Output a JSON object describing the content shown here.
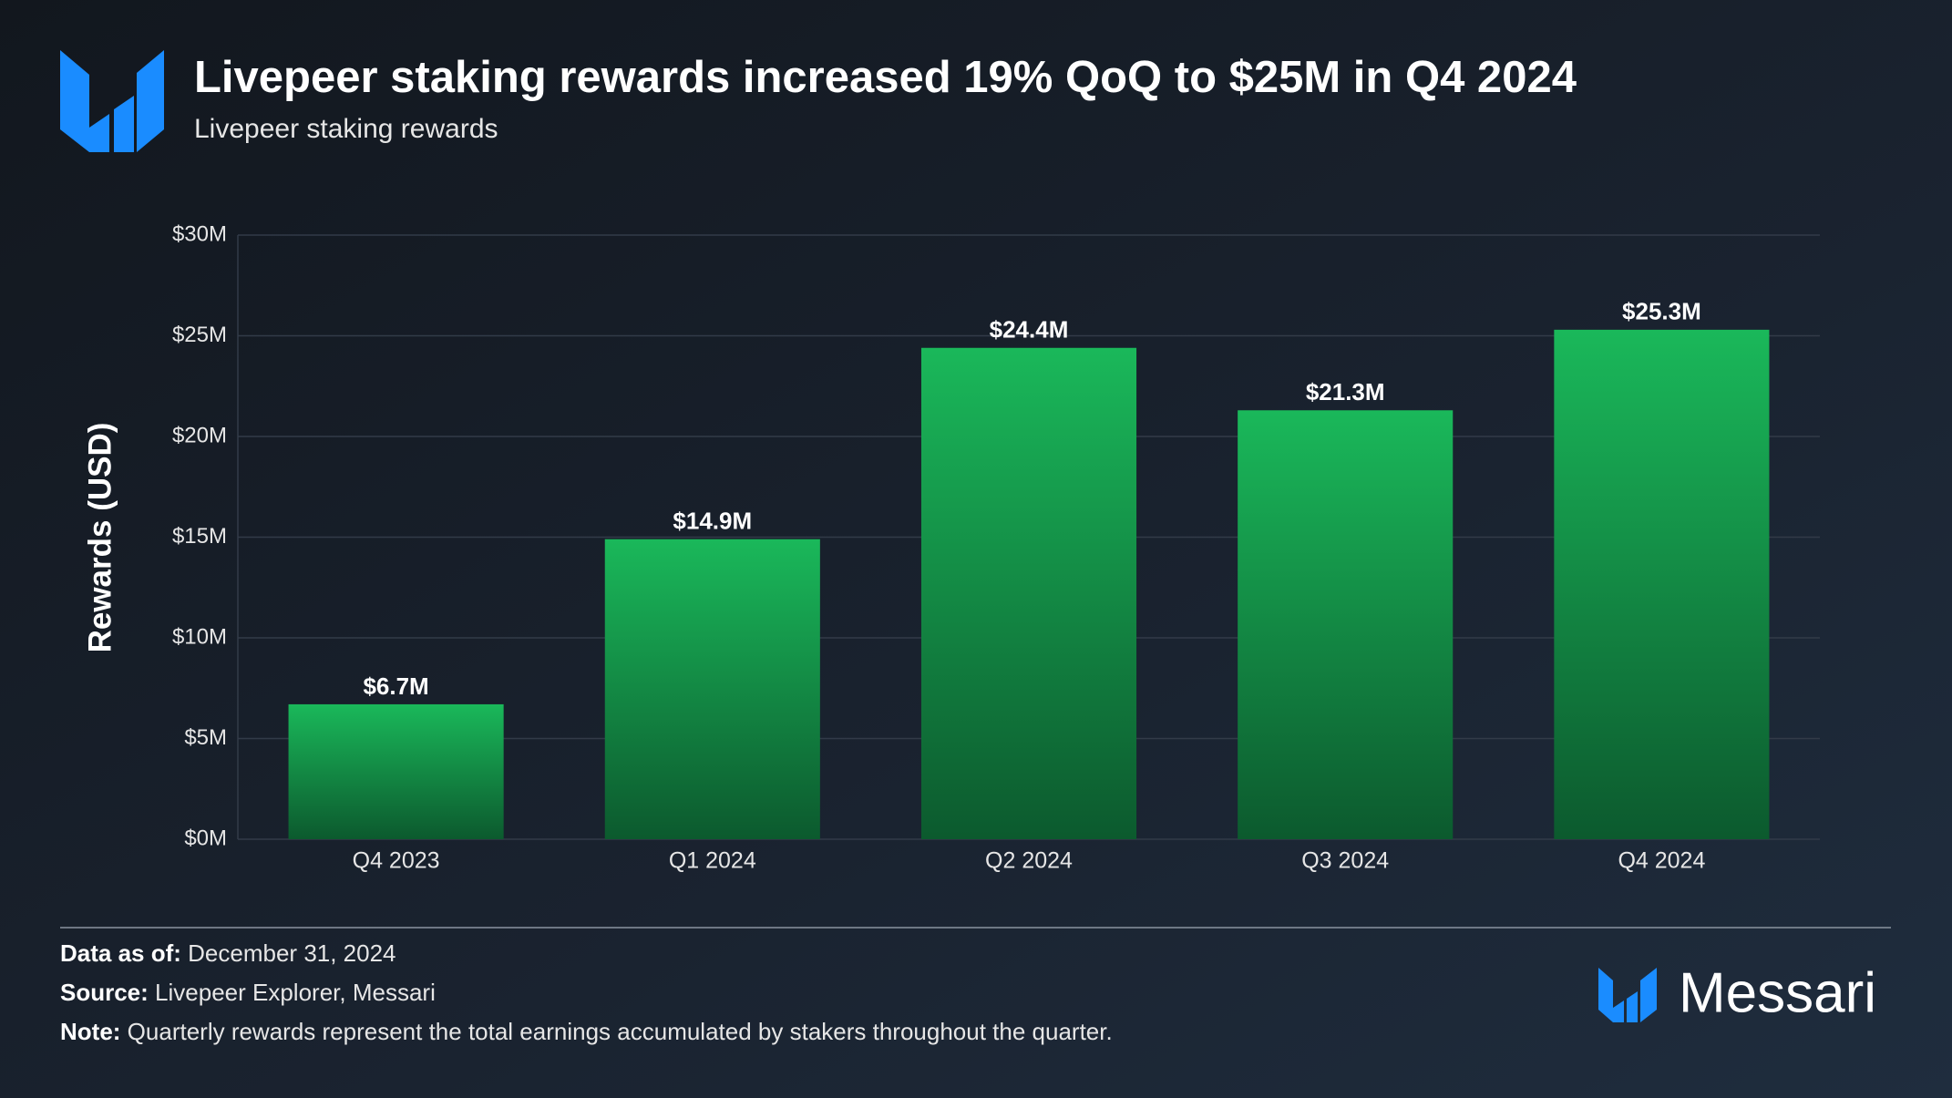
{
  "chart_data": {
    "type": "bar",
    "title": "Livepeer staking rewards increased 19% QoQ to $25M in Q4 2024",
    "subtitle": "Livepeer staking rewards",
    "y_label": "Rewards (USD)",
    "categories": [
      "Q4 2023",
      "Q1 2024",
      "Q2 2024",
      "Q3 2024",
      "Q4 2024"
    ],
    "values": [
      6.7,
      14.9,
      24.4,
      21.3,
      25.3
    ],
    "value_labels": [
      "$6.7M",
      "$14.9M",
      "$24.4M",
      "$21.3M",
      "$25.3M"
    ],
    "color": "#1db95a",
    "ylim": [
      0,
      30
    ],
    "yticks": [
      {
        "value": 0,
        "label": "$0M"
      },
      {
        "value": 5,
        "label": "$5M"
      },
      {
        "value": 10,
        "label": "$10M"
      },
      {
        "value": 15,
        "label": "$15M"
      },
      {
        "value": 20,
        "label": "$20M"
      },
      {
        "value": 25,
        "label": "$25M"
      },
      {
        "value": 30,
        "label": "$30M"
      }
    ],
    "grid": true
  },
  "footer": {
    "data_as_of": {
      "label": "Data as of:",
      "text": "December 31, 2024"
    },
    "source": {
      "label": "Source:",
      "text": "Livepeer Explorer, Messari"
    },
    "note": {
      "label": "Note:",
      "text": "Quarterly rewards represent the total earnings accumulated by stakers throughout the quarter."
    },
    "brand": "Messari"
  }
}
